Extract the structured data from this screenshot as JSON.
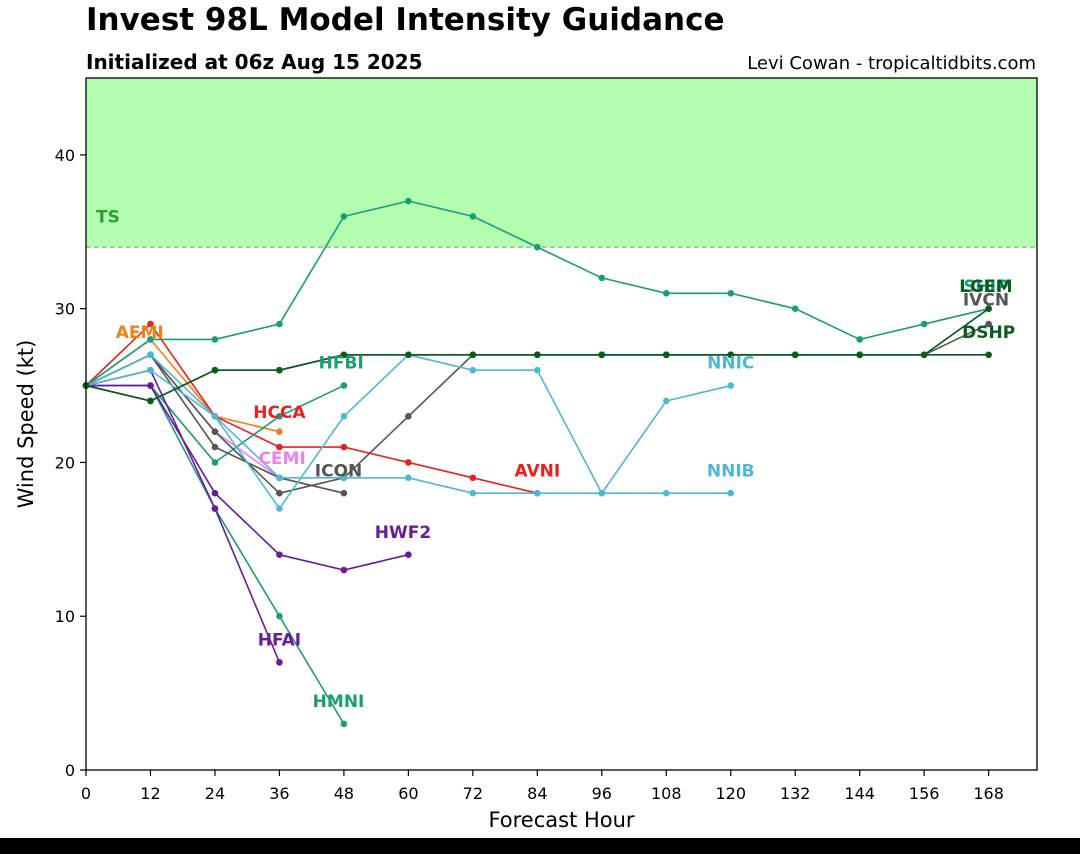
{
  "header": {
    "title": "Invest 98L Model Intensity Guidance",
    "subtitle": "Initialized at 06z Aug 15 2025",
    "credit": "Levi Cowan - tropicaltidbits.com"
  },
  "chart_data": {
    "type": "line",
    "title": "Invest 98L Model Intensity Guidance",
    "subtitle": "Initialized at 06z Aug 15 2025",
    "xlabel": "Forecast Hour",
    "ylabel": "Wind Speed (kt)",
    "xlim": [
      0,
      177
    ],
    "ylim": [
      0,
      45
    ],
    "xticks": [
      0,
      12,
      24,
      36,
      48,
      60,
      72,
      84,
      96,
      108,
      120,
      132,
      144,
      156,
      168
    ],
    "yticks": [
      0,
      10,
      20,
      30,
      40
    ],
    "grid": false,
    "threshold": {
      "label": "TS",
      "value": 34,
      "fill": "#b3fdb0",
      "label_color": "#2ca02c"
    },
    "series": [
      {
        "name": "AEMI",
        "color": "#f57f17",
        "label_at": [
          10,
          28.1
        ],
        "x": [
          0,
          12,
          24,
          36
        ],
        "y": [
          25,
          28,
          23,
          22
        ]
      },
      {
        "name": "HCCA",
        "color": "#e8201f",
        "label_at": [
          36,
          22.9
        ],
        "x": [
          0,
          12,
          24,
          36,
          48,
          60,
          72,
          84
        ],
        "y": [
          25,
          29,
          23,
          21,
          21,
          20,
          19,
          18
        ]
      },
      {
        "name": "AVNI",
        "color": "#e8201f",
        "label_at": [
          84,
          19.1
        ],
        "x": [],
        "y": []
      },
      {
        "name": "CEMI",
        "color": "#ee82ee",
        "label_at": [
          36.5,
          19.9
        ],
        "x": [
          0,
          12,
          24,
          36
        ],
        "y": [
          25,
          27,
          22,
          19
        ]
      },
      {
        "name": "HFBI",
        "color": "#1a9e74",
        "label_at": [
          47.5,
          26.1
        ],
        "x": [
          0,
          12,
          24,
          36,
          48
        ],
        "y": [
          25,
          25,
          20,
          23,
          25
        ]
      },
      {
        "name": "HMNI",
        "color": "#1a9e74",
        "label_at": [
          47,
          4.1
        ],
        "x": [
          0,
          12,
          24,
          36,
          48
        ],
        "y": [
          25,
          25,
          17,
          10,
          3
        ]
      },
      {
        "name": "HFAI",
        "color": "#6a1b9a",
        "label_at": [
          36,
          8.1
        ],
        "x": [
          0,
          12,
          24,
          36
        ],
        "y": [
          25,
          26,
          17,
          7
        ]
      },
      {
        "name": "HWF2",
        "color": "#6a1b9a",
        "label_at": [
          59,
          15.1
        ],
        "x": [
          0,
          12,
          24,
          36,
          48,
          60
        ],
        "y": [
          25,
          25,
          18,
          14,
          13,
          14
        ]
      },
      {
        "name": "ICON",
        "color": "#555555",
        "label_at": [
          47,
          19.1
        ],
        "x": [
          0,
          12,
          24,
          36,
          48
        ],
        "y": [
          25,
          27,
          21,
          19,
          18
        ]
      },
      {
        "name": "IVCN",
        "color": "#555555",
        "label_at": [
          167.5,
          30.2
        ],
        "x": [
          0,
          12,
          24,
          36,
          48,
          60,
          72,
          84,
          96,
          108,
          120,
          132,
          144,
          156,
          168
        ],
        "y": [
          25,
          27,
          22,
          18,
          19,
          23,
          27,
          27,
          27,
          27,
          27,
          27,
          27,
          27,
          29
        ]
      },
      {
        "name": "NNIC",
        "color": "#4fb8d6",
        "label_at": [
          120,
          26.1
        ],
        "x": [
          0,
          12,
          24,
          36,
          48,
          60,
          72,
          84,
          96,
          108,
          120
        ],
        "y": [
          25,
          27,
          23,
          17,
          23,
          27,
          26,
          26,
          18,
          24,
          25
        ]
      },
      {
        "name": "NNIB",
        "color": "#4fb8d6",
        "label_at": [
          120,
          19.1
        ],
        "x": [
          0,
          12,
          24,
          36,
          48,
          60,
          72,
          84,
          96,
          108,
          120
        ],
        "y": [
          25,
          26,
          23,
          19,
          19,
          19,
          18,
          18,
          18,
          18,
          18
        ]
      },
      {
        "name": "SHIP",
        "color": "#1a9e74",
        "label_at": [
          167.5,
          31.1
        ],
        "x": [
          0,
          12,
          24,
          36,
          48,
          60,
          72,
          84,
          96,
          108,
          120,
          132,
          144,
          156,
          168
        ],
        "y": [
          25,
          28,
          28,
          29,
          36,
          37,
          36,
          34,
          32,
          31,
          31,
          30,
          28,
          29,
          30
        ]
      },
      {
        "name": "LGEM",
        "color": "#0b5a1e",
        "label_at": [
          167.5,
          31.1
        ],
        "x": [
          0,
          12,
          24,
          36,
          48,
          60,
          72,
          84,
          96,
          108,
          120,
          132,
          144,
          156,
          168
        ],
        "y": [
          25,
          24,
          26,
          26,
          27,
          27,
          27,
          27,
          27,
          27,
          27,
          27,
          27,
          27,
          30
        ]
      },
      {
        "name": "DSHP",
        "color": "#0b5a1e",
        "label_at": [
          168,
          28.1
        ],
        "x": [
          0,
          12,
          24,
          36,
          48,
          60,
          72,
          84,
          96,
          108,
          120,
          132,
          144,
          156,
          168
        ],
        "y": [
          25,
          24,
          26,
          26,
          27,
          27,
          27,
          27,
          27,
          27,
          27,
          27,
          27,
          27,
          27
        ]
      }
    ]
  }
}
